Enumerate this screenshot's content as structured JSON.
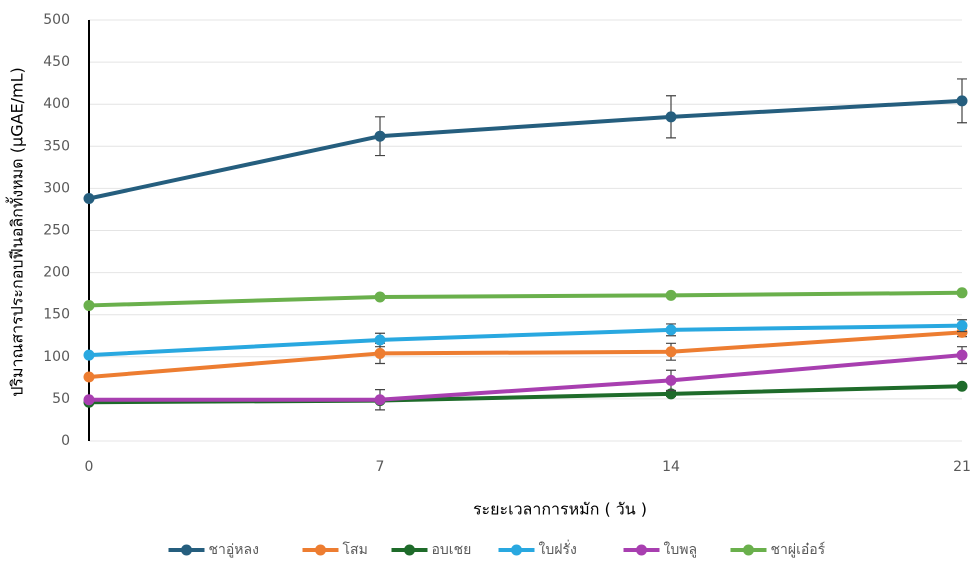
{
  "chart_data": {
    "type": "line",
    "x_label": "ระยะเวลาการหมัก ( วัน )",
    "y_label": "ปริมาณสารประกอบฟีนอลิกทั้งหมด (µGAE/mL)",
    "x": [
      0,
      7,
      14,
      21
    ],
    "xlim": [
      0,
      21
    ],
    "xticks": [
      0,
      7,
      14,
      21
    ],
    "ylim": [
      0,
      500
    ],
    "yticks": [
      0,
      50,
      100,
      150,
      200,
      250,
      300,
      350,
      400,
      450,
      500
    ],
    "grid": true,
    "legend": "bottom",
    "series": [
      {
        "name": "ชาอู่หลง",
        "color": "#255e7e",
        "values": [
          288,
          362,
          385,
          404
        ],
        "errors": [
          null,
          23,
          25,
          26
        ]
      },
      {
        "name": "โสม",
        "color": "#ed7d31",
        "values": [
          76,
          104,
          106,
          129
        ],
        "errors": [
          null,
          12,
          10,
          5
        ]
      },
      {
        "name": "อบเชย",
        "color": "#1e6b2a",
        "values": [
          46,
          48,
          56,
          65
        ],
        "errors": [
          null,
          null,
          3,
          2
        ]
      },
      {
        "name": "ใบฝรั่ง",
        "color": "#29a8e0",
        "values": [
          102,
          120,
          132,
          137
        ],
        "errors": [
          null,
          8,
          7,
          7
        ]
      },
      {
        "name": "ใบพลู",
        "color": "#a83fb0",
        "values": [
          49,
          49,
          72,
          102
        ],
        "errors": [
          null,
          12,
          12,
          10
        ]
      },
      {
        "name": "ชาผู่เอ๋อร์",
        "color": "#6ab04c",
        "values": [
          161,
          171,
          173,
          176
        ],
        "errors": [
          null,
          2,
          2,
          2
        ]
      }
    ]
  }
}
